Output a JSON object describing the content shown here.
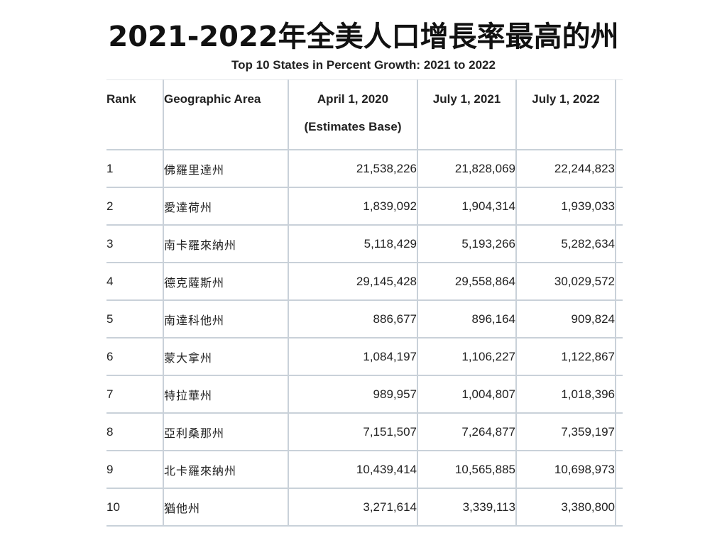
{
  "title": "2021-2022年全美人口增長率最高的州",
  "subtitle": "Top 10 States in Percent Growth: 2021 to 2022",
  "table": {
    "headers": {
      "rank": "Rank",
      "area": "Geographic Area",
      "apr_line1": "April 1, 2020",
      "apr_line2": "(Estimates Base)",
      "jul2021": "July 1, 2021",
      "jul2022": "July 1, 2022"
    },
    "rows": [
      {
        "rank": "1",
        "area": "佛羅里達州",
        "apr2020": "21,538,226",
        "jul2021": "21,828,069",
        "jul2022": "22,244,823"
      },
      {
        "rank": "2",
        "area": "愛達荷州",
        "apr2020": "1,839,092",
        "jul2021": "1,904,314",
        "jul2022": "1,939,033"
      },
      {
        "rank": "3",
        "area": "南卡羅來納州",
        "apr2020": "5,118,429",
        "jul2021": "5,193,266",
        "jul2022": "5,282,634"
      },
      {
        "rank": "4",
        "area": "德克薩斯州",
        "apr2020": "29,145,428",
        "jul2021": "29,558,864",
        "jul2022": "30,029,572"
      },
      {
        "rank": "5",
        "area": "南達科他州",
        "apr2020": "886,677",
        "jul2021": "896,164",
        "jul2022": "909,824"
      },
      {
        "rank": "6",
        "area": "蒙大拿州",
        "apr2020": "1,084,197",
        "jul2021": "1,106,227",
        "jul2022": "1,122,867"
      },
      {
        "rank": "7",
        "area": "特拉華州",
        "apr2020": "989,957",
        "jul2021": "1,004,807",
        "jul2022": "1,018,396"
      },
      {
        "rank": "8",
        "area": "亞利桑那州",
        "apr2020": "7,151,507",
        "jul2021": "7,264,877",
        "jul2022": "7,359,197"
      },
      {
        "rank": "9",
        "area": "北卡羅來納州",
        "apr2020": "10,439,414",
        "jul2021": "10,565,885",
        "jul2022": "10,698,973"
      },
      {
        "rank": "10",
        "area": "猶他州",
        "apr2020": "3,271,614",
        "jul2021": "3,339,113",
        "jul2022": "3,380,800"
      }
    ]
  }
}
